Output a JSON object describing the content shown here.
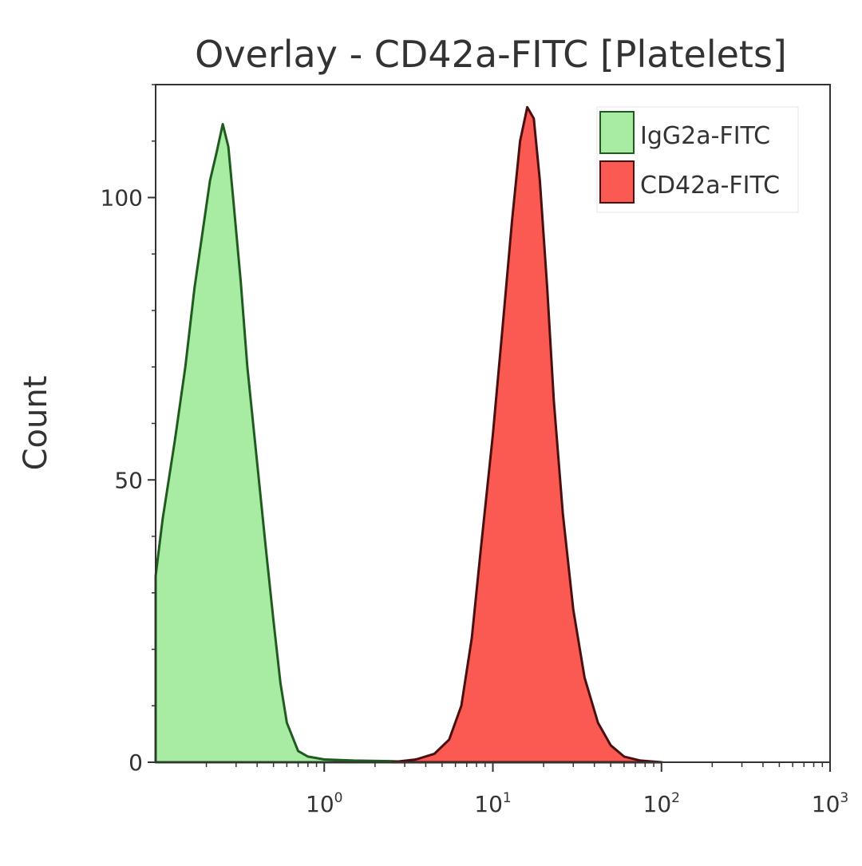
{
  "chart_data": {
    "type": "area",
    "title": "Overlay - CD42a-FITC [Platelets]",
    "xlabel": "",
    "ylabel": "Count",
    "x_scale": "log",
    "xlim": [
      0.1,
      1000
    ],
    "ylim": [
      0,
      120
    ],
    "y_ticks": [
      0,
      50,
      100
    ],
    "y_tick_labels": [
      "0",
      "50",
      "100"
    ],
    "x_ticks": [
      {
        "value": 1,
        "base": "10",
        "exp": "0"
      },
      {
        "value": 10,
        "base": "10",
        "exp": "1"
      },
      {
        "value": 100,
        "base": "10",
        "exp": "2"
      },
      {
        "value": 1000,
        "base": "10",
        "exp": "3"
      }
    ],
    "grid": false,
    "legend_position": "top-right",
    "series": [
      {
        "name": "IgG2a-FITC",
        "fill": "#a8eca3",
        "stroke": "#1f5b1f",
        "x": [
          0.1,
          0.11,
          0.13,
          0.15,
          0.17,
          0.19,
          0.21,
          0.23,
          0.25,
          0.27,
          0.29,
          0.32,
          0.35,
          0.4,
          0.45,
          0.5,
          0.55,
          0.6,
          0.7,
          0.8,
          1.0,
          1.5,
          2.5,
          3.5
        ],
        "counts": [
          33,
          43,
          57,
          70,
          84,
          94,
          103,
          108,
          113,
          109,
          99,
          85,
          70,
          53,
          38,
          25,
          14,
          7,
          2,
          1,
          0.5,
          0.3,
          0.2,
          0
        ]
      },
      {
        "name": "CD42a-FITC",
        "fill": "#fa5a52",
        "stroke": "#4a0f0f",
        "x": [
          2.5,
          3.5,
          4.5,
          5.5,
          6.5,
          7.5,
          8.5,
          10,
          11.5,
          13,
          14.5,
          16,
          17.5,
          19,
          21,
          23,
          26,
          30,
          35,
          42,
          50,
          60,
          75,
          100
        ],
        "counts": [
          0,
          0.5,
          1.5,
          4,
          10,
          22,
          38,
          58,
          78,
          96,
          110,
          116,
          114,
          103,
          84,
          64,
          44,
          27,
          15,
          7,
          3,
          1,
          0.3,
          0
        ]
      }
    ]
  }
}
